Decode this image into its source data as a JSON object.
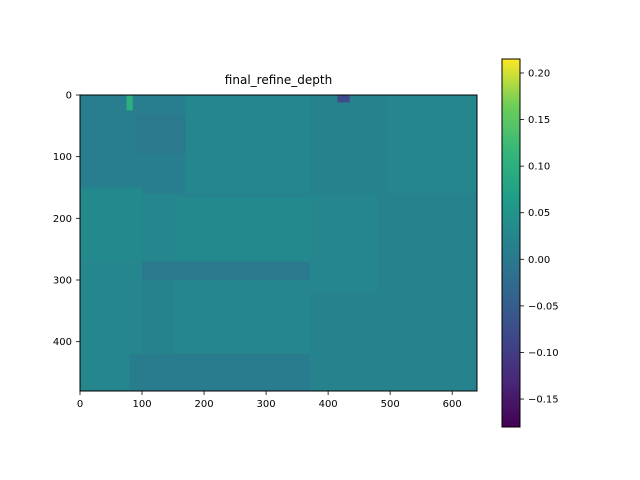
{
  "chart_data": {
    "type": "heatmap",
    "title": "final_refine_depth",
    "xlabel": "",
    "ylabel": "",
    "xlim": [
      0,
      640
    ],
    "ylim": [
      480,
      0
    ],
    "x_ticks": [
      {
        "value": 0,
        "label": "0"
      },
      {
        "value": 100,
        "label": "100"
      },
      {
        "value": 200,
        "label": "200"
      },
      {
        "value": 300,
        "label": "300"
      },
      {
        "value": 400,
        "label": "400"
      },
      {
        "value": 500,
        "label": "500"
      },
      {
        "value": 600,
        "label": "600"
      }
    ],
    "y_ticks": [
      {
        "value": 0,
        "label": "0"
      },
      {
        "value": 100,
        "label": "100"
      },
      {
        "value": 200,
        "label": "200"
      },
      {
        "value": 300,
        "label": "300"
      },
      {
        "value": 400,
        "label": "400"
      }
    ],
    "colormap": "viridis",
    "colorbar": {
      "vmin": -0.18,
      "vmax": 0.215,
      "ticks": [
        {
          "value": 0.2,
          "label": "0.20"
        },
        {
          "value": 0.15,
          "label": "0.15"
        },
        {
          "value": 0.1,
          "label": "0.10"
        },
        {
          "value": 0.05,
          "label": "0.05"
        },
        {
          "value": 0.0,
          "label": "0.00"
        },
        {
          "value": -0.05,
          "label": "−0.05"
        },
        {
          "value": -0.1,
          "label": "−0.10"
        },
        {
          "value": -0.15,
          "label": "−0.15"
        }
      ]
    },
    "background_value": 0.02,
    "regions": [
      {
        "x0": 0,
        "x1": 640,
        "y0": 0,
        "y1": 480,
        "value": 0.02
      },
      {
        "x0": 0,
        "x1": 200,
        "y0": 0,
        "y1": 160,
        "value": 0.01
      },
      {
        "x0": 90,
        "x1": 180,
        "y0": 30,
        "y1": 95,
        "value": 0.0
      },
      {
        "x0": 170,
        "x1": 370,
        "y0": 0,
        "y1": 160,
        "value": 0.025
      },
      {
        "x0": 495,
        "x1": 640,
        "y0": 0,
        "y1": 160,
        "value": 0.025
      },
      {
        "x0": 0,
        "x1": 100,
        "y0": 150,
        "y1": 270,
        "value": 0.03
      },
      {
        "x0": 100,
        "x1": 160,
        "y0": 160,
        "y1": 300,
        "value": 0.025
      },
      {
        "x0": 160,
        "x1": 370,
        "y0": 165,
        "y1": 270,
        "value": 0.03
      },
      {
        "x0": 370,
        "x1": 480,
        "y0": 160,
        "y1": 320,
        "value": 0.025
      },
      {
        "x0": 480,
        "x1": 640,
        "y0": 160,
        "y1": 380,
        "value": 0.02
      },
      {
        "x0": 0,
        "x1": 100,
        "y0": 270,
        "y1": 420,
        "value": 0.025
      },
      {
        "x0": 100,
        "x1": 370,
        "y0": 270,
        "y1": 300,
        "value": 0.0
      },
      {
        "x0": 150,
        "x1": 380,
        "y0": 300,
        "y1": 420,
        "value": 0.025
      },
      {
        "x0": 370,
        "x1": 480,
        "y0": 320,
        "y1": 480,
        "value": 0.02
      },
      {
        "x0": 480,
        "x1": 640,
        "y0": 380,
        "y1": 480,
        "value": 0.02
      },
      {
        "x0": 80,
        "x1": 370,
        "y0": 420,
        "y1": 480,
        "value": 0.005
      },
      {
        "x0": 0,
        "x1": 80,
        "y0": 420,
        "y1": 480,
        "value": 0.025
      },
      {
        "x0": 75,
        "x1": 85,
        "y0": 0,
        "y1": 25,
        "value": 0.1
      },
      {
        "x0": 415,
        "x1": 435,
        "y0": 0,
        "y1": 12,
        "value": -0.08
      }
    ]
  }
}
